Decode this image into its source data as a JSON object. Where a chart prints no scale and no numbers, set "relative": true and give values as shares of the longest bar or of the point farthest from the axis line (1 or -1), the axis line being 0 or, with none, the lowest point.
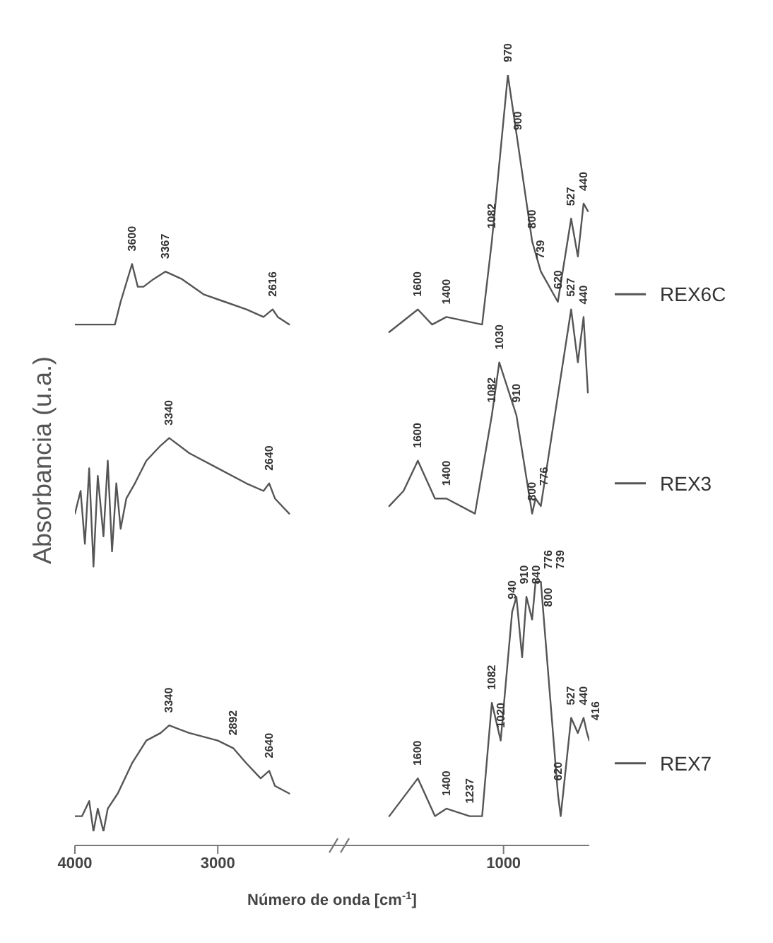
{
  "chart_data": {
    "type": "line",
    "relative": true,
    "xlabel": "Número de onda [cm$^{-1}$]",
    "ylabel": "Absorbancia (u.a.)",
    "xlim": [
      4000,
      400
    ],
    "xticks": [
      4000,
      3000,
      1000
    ],
    "legend": "right",
    "marker": "none",
    "series": [
      {
        "name": "REX6C",
        "color": "#555555",
        "x": [
          4000,
          3800,
          3720,
          3680,
          3600,
          3560,
          3520,
          3450,
          3367,
          3250,
          3100,
          2950,
          2800,
          2680,
          2616,
          2580,
          2500,
          2150,
          1800,
          1600,
          1500,
          1400,
          1150,
          1082,
          970,
          900,
          800,
          739,
          620,
          527,
          480,
          440,
          410
        ],
        "values": [
          0.67,
          0.67,
          0.67,
          0.7,
          0.75,
          0.72,
          0.72,
          0.73,
          0.74,
          0.73,
          0.71,
          0.7,
          0.69,
          0.68,
          0.69,
          0.68,
          0.67,
          null,
          0.66,
          0.69,
          0.67,
          0.68,
          0.67,
          0.78,
          1.0,
          0.91,
          0.78,
          0.74,
          0.7,
          0.81,
          0.76,
          0.83,
          0.82
        ]
      },
      {
        "name": "REX3",
        "color": "#555555",
        "x": [
          4000,
          3960,
          3930,
          3900,
          3870,
          3840,
          3800,
          3770,
          3740,
          3710,
          3680,
          3640,
          3580,
          3500,
          3400,
          3340,
          3200,
          3000,
          2800,
          2680,
          2640,
          2600,
          2500,
          2150,
          1800,
          1700,
          1600,
          1480,
          1400,
          1200,
          1082,
          1030,
          910,
          800,
          776,
          739,
          527,
          480,
          440,
          410
        ],
        "values": [
          0.42,
          0.45,
          0.38,
          0.48,
          0.35,
          0.47,
          0.39,
          0.49,
          0.37,
          0.46,
          0.4,
          0.44,
          0.46,
          0.49,
          0.51,
          0.52,
          0.5,
          0.48,
          0.46,
          0.45,
          0.46,
          0.44,
          0.42,
          null,
          0.43,
          0.45,
          0.49,
          0.44,
          0.44,
          0.42,
          0.55,
          0.62,
          0.55,
          0.42,
          0.44,
          0.43,
          0.69,
          0.62,
          0.68,
          0.58
        ]
      },
      {
        "name": "REX7",
        "color": "#555555",
        "x": [
          4000,
          3950,
          3900,
          3870,
          3840,
          3800,
          3770,
          3700,
          3600,
          3500,
          3400,
          3340,
          3200,
          3000,
          2892,
          2800,
          2700,
          2640,
          2600,
          2500,
          2150,
          1800,
          1600,
          1480,
          1400,
          1237,
          1150,
          1082,
          1020,
          940,
          910,
          870,
          840,
          800,
          776,
          739,
          620,
          600,
          527,
          480,
          440,
          416,
          400
        ],
        "values": [
          0.02,
          0.02,
          0.04,
          0.0,
          0.03,
          0.0,
          0.03,
          0.05,
          0.09,
          0.12,
          0.13,
          0.14,
          0.13,
          0.12,
          0.11,
          0.09,
          0.07,
          0.08,
          0.06,
          0.05,
          null,
          0.02,
          0.07,
          0.02,
          0.03,
          0.02,
          0.02,
          0.17,
          0.12,
          0.29,
          0.31,
          0.23,
          0.31,
          0.28,
          0.33,
          0.33,
          0.05,
          0.02,
          0.15,
          0.13,
          0.15,
          0.13,
          0.12
        ]
      }
    ],
    "annotations": [
      {
        "text": "3600",
        "x": 3600,
        "y": 0.75
      },
      {
        "text": "3367",
        "x": 3367,
        "y": 0.74
      },
      {
        "text": "2616",
        "x": 2616,
        "y": 0.69
      },
      {
        "text": "1600",
        "x": 1600,
        "y": 0.69
      },
      {
        "text": "1400",
        "x": 1400,
        "y": 0.68
      },
      {
        "text": "1082",
        "x": 1082,
        "y": 0.78
      },
      {
        "text": "970",
        "x": 970,
        "y": 1.0
      },
      {
        "text": "900",
        "x": 900,
        "y": 0.91
      },
      {
        "text": "800",
        "x": 800,
        "y": 0.78
      },
      {
        "text": "739",
        "x": 739,
        "y": 0.74
      },
      {
        "text": "620",
        "x": 620,
        "y": 0.7
      },
      {
        "text": "527",
        "x": 527,
        "y": 0.81
      },
      {
        "text": "440",
        "x": 440,
        "y": 0.83
      },
      {
        "text": "3340",
        "x": 3340,
        "y": 0.52
      },
      {
        "text": "2640",
        "x": 2640,
        "y": 0.46
      },
      {
        "text": "1600",
        "x": 1600,
        "y": 0.49
      },
      {
        "text": "1400",
        "x": 1400,
        "y": 0.44
      },
      {
        "text": "1082",
        "x": 1082,
        "y": 0.55
      },
      {
        "text": "1030",
        "x": 1030,
        "y": 0.62
      },
      {
        "text": "910",
        "x": 910,
        "y": 0.55
      },
      {
        "text": "800",
        "x": 800,
        "y": 0.42
      },
      {
        "text": "776",
        "x": 776,
        "y": 0.44
      },
      {
        "text": "527",
        "x": 527,
        "y": 0.69
      },
      {
        "text": "440",
        "x": 440,
        "y": 0.68
      },
      {
        "text": "3340",
        "x": 3340,
        "y": 0.14
      },
      {
        "text": "2892",
        "x": 2892,
        "y": 0.11
      },
      {
        "text": "2640",
        "x": 2640,
        "y": 0.08
      },
      {
        "text": "1600",
        "x": 1600,
        "y": 0.07
      },
      {
        "text": "1400",
        "x": 1400,
        "y": 0.03
      },
      {
        "text": "1237",
        "x": 1237,
        "y": 0.02
      },
      {
        "text": "1082",
        "x": 1082,
        "y": 0.17
      },
      {
        "text": "1020",
        "x": 1020,
        "y": 0.12
      },
      {
        "text": "940",
        "x": 940,
        "y": 0.29
      },
      {
        "text": "910",
        "x": 910,
        "y": 0.31
      },
      {
        "text": "840",
        "x": 840,
        "y": 0.31
      },
      {
        "text": "800",
        "x": 800,
        "y": 0.28
      },
      {
        "text": "776",
        "x": 776,
        "y": 0.33
      },
      {
        "text": "739",
        "x": 739,
        "y": 0.33
      },
      {
        "text": "620",
        "x": 620,
        "y": 0.05
      },
      {
        "text": "527",
        "x": 527,
        "y": 0.15
      },
      {
        "text": "440",
        "x": 440,
        "y": 0.15
      },
      {
        "text": "416",
        "x": 416,
        "y": 0.13
      }
    ]
  }
}
